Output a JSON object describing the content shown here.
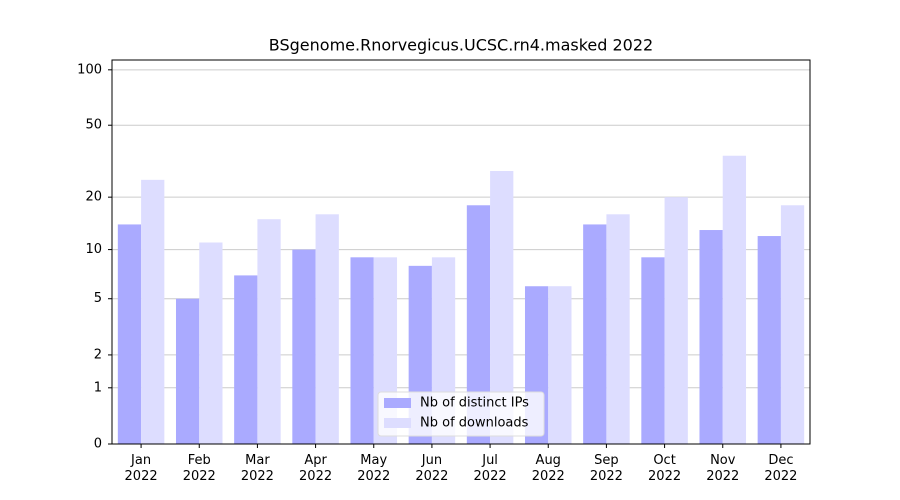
{
  "chart_data": {
    "type": "bar",
    "title": "BSgenome.Rnorvegicus.UCSC.rn4.masked 2022",
    "categories": [
      "Jan\n2022",
      "Feb\n2022",
      "Mar\n2022",
      "Apr\n2022",
      "May\n2022",
      "Jun\n2022",
      "Jul\n2022",
      "Aug\n2022",
      "Sep\n2022",
      "Oct\n2022",
      "Nov\n2022",
      "Dec\n2022"
    ],
    "series": [
      {
        "name": "Nb of distinct IPs",
        "color": "#aaaaff",
        "values": [
          14,
          5,
          7,
          10,
          9,
          8,
          18,
          6,
          14,
          9,
          13,
          12
        ]
      },
      {
        "name": "Nb of downloads",
        "color": "#ddddff",
        "values": [
          25,
          11,
          15,
          16,
          9,
          9,
          28,
          6,
          16,
          20,
          34,
          18
        ]
      }
    ],
    "yscale": "log1p",
    "ylim": [
      0,
      113
    ],
    "yticks": [
      0,
      1,
      2,
      5,
      10,
      20,
      50,
      100
    ],
    "grid": true,
    "legend": "lower center"
  }
}
